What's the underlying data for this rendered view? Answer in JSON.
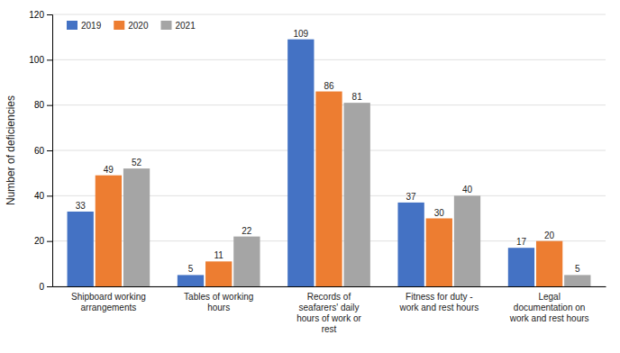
{
  "chart_data": {
    "type": "bar",
    "categories": [
      "Shipboard working\narrangements",
      "Tables of working\nhours",
      "Records of\nseafarers' daily\nhours of work or\nrest",
      "Fitness for duty -\nwork and rest hours",
      "Legal\ndocumentation on\nwork and rest hours"
    ],
    "series": [
      {
        "name": "2019",
        "color": "#4472c4",
        "values": [
          33,
          5,
          109,
          37,
          17
        ]
      },
      {
        "name": "2020",
        "color": "#ed7d31",
        "values": [
          49,
          11,
          86,
          30,
          20
        ]
      },
      {
        "name": "2021",
        "color": "#a5a5a5",
        "values": [
          52,
          22,
          81,
          40,
          5
        ]
      }
    ],
    "ylabel": "Number of deficiencies",
    "ylim": [
      0,
      120
    ],
    "yticks": [
      0,
      20,
      40,
      60,
      80,
      100,
      120
    ],
    "grid": true,
    "legend": "upper left",
    "data_labels": true
  }
}
